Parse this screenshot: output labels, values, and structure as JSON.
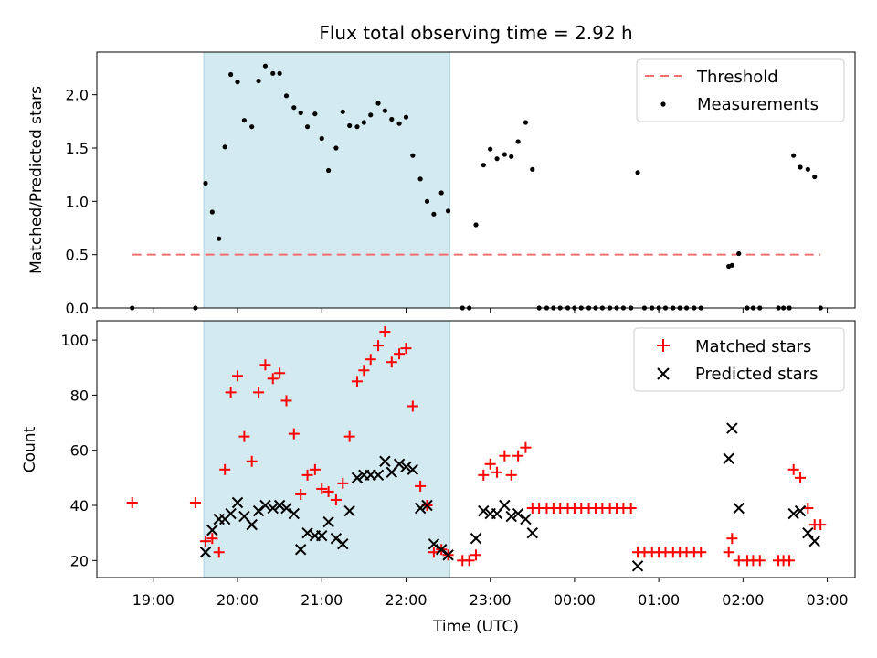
{
  "chart_data": [
    {
      "type": "scatter",
      "title": "Flux total observing time = 2.92 h",
      "xlabel": "",
      "ylabel": "Matched/Predicted stars",
      "xlim": [
        18.33,
        27.33
      ],
      "ylim": [
        0.0,
        2.4
      ],
      "yticks": [
        0.0,
        0.5,
        1.0,
        1.5,
        2.0
      ],
      "ytick_labels": [
        "0.0",
        "0.5",
        "1.0",
        "1.5",
        "2.0"
      ],
      "highlight_span": [
        19.6,
        22.52
      ],
      "threshold": {
        "label": "Threshold",
        "value": 0.5,
        "x_start": 18.75,
        "x_end": 26.92,
        "color": "#f47070"
      },
      "legend": [
        "Threshold",
        "Measurements"
      ],
      "series": [
        {
          "name": "Measurements",
          "color": "#000000",
          "points": [
            [
              18.75,
              0.0
            ],
            [
              19.5,
              0.0
            ],
            [
              19.62,
              1.17
            ],
            [
              19.7,
              0.9
            ],
            [
              19.78,
              0.65
            ],
            [
              19.85,
              1.51
            ],
            [
              19.92,
              2.19
            ],
            [
              20.0,
              2.12
            ],
            [
              20.08,
              1.76
            ],
            [
              20.17,
              1.7
            ],
            [
              20.25,
              2.13
            ],
            [
              20.33,
              2.27
            ],
            [
              20.42,
              2.2
            ],
            [
              20.5,
              2.2
            ],
            [
              20.58,
              1.99
            ],
            [
              20.67,
              1.88
            ],
            [
              20.75,
              1.83
            ],
            [
              20.83,
              1.7
            ],
            [
              20.92,
              1.82
            ],
            [
              21.0,
              1.59
            ],
            [
              21.08,
              1.29
            ],
            [
              21.17,
              1.5
            ],
            [
              21.25,
              1.84
            ],
            [
              21.33,
              1.71
            ],
            [
              21.42,
              1.7
            ],
            [
              21.5,
              1.74
            ],
            [
              21.58,
              1.81
            ],
            [
              21.67,
              1.92
            ],
            [
              21.75,
              1.85
            ],
            [
              21.83,
              1.77
            ],
            [
              21.92,
              1.73
            ],
            [
              22.0,
              1.79
            ],
            [
              22.08,
              1.43
            ],
            [
              22.17,
              1.21
            ],
            [
              22.25,
              1.0
            ],
            [
              22.33,
              0.88
            ],
            [
              22.42,
              1.08
            ],
            [
              22.5,
              0.91
            ],
            [
              22.67,
              0.0
            ],
            [
              22.75,
              0.0
            ],
            [
              22.83,
              0.78
            ],
            [
              22.92,
              1.34
            ],
            [
              23.0,
              1.49
            ],
            [
              23.08,
              1.4
            ],
            [
              23.17,
              1.44
            ],
            [
              23.25,
              1.42
            ],
            [
              23.33,
              1.56
            ],
            [
              23.42,
              1.74
            ],
            [
              23.5,
              1.3
            ],
            [
              23.58,
              0.0
            ],
            [
              23.67,
              0.0
            ],
            [
              23.75,
              0.0
            ],
            [
              23.83,
              0.0
            ],
            [
              23.92,
              0.0
            ],
            [
              24.0,
              0.0
            ],
            [
              24.08,
              0.0
            ],
            [
              24.17,
              0.0
            ],
            [
              24.25,
              0.0
            ],
            [
              24.33,
              0.0
            ],
            [
              24.42,
              0.0
            ],
            [
              24.5,
              0.0
            ],
            [
              24.58,
              0.0
            ],
            [
              24.67,
              0.0
            ],
            [
              24.75,
              1.27
            ],
            [
              24.83,
              0.0
            ],
            [
              24.92,
              0.0
            ],
            [
              25.0,
              0.0
            ],
            [
              25.08,
              0.0
            ],
            [
              25.17,
              0.0
            ],
            [
              25.25,
              0.0
            ],
            [
              25.33,
              0.0
            ],
            [
              25.42,
              0.0
            ],
            [
              25.5,
              0.0
            ],
            [
              25.83,
              0.39
            ],
            [
              25.87,
              0.4
            ],
            [
              25.95,
              0.51
            ],
            [
              26.05,
              0.0
            ],
            [
              26.12,
              0.0
            ],
            [
              26.2,
              0.0
            ],
            [
              26.42,
              0.0
            ],
            [
              26.48,
              0.0
            ],
            [
              26.55,
              0.0
            ],
            [
              26.6,
              1.43
            ],
            [
              26.68,
              1.32
            ],
            [
              26.77,
              1.3
            ],
            [
              26.85,
              1.23
            ],
            [
              26.92,
              0.0
            ]
          ]
        }
      ]
    },
    {
      "type": "scatter",
      "title": "",
      "xlabel": "Time (UTC)",
      "ylabel": "Count",
      "xlim": [
        18.33,
        27.33
      ],
      "ylim": [
        13.8,
        107.0
      ],
      "yticks": [
        20,
        40,
        60,
        80,
        100
      ],
      "ytick_labels": [
        "20",
        "40",
        "60",
        "80",
        "100"
      ],
      "xticks": [
        19,
        20,
        21,
        22,
        23,
        24,
        25,
        26,
        27
      ],
      "xtick_labels": [
        "19:00",
        "20:00",
        "21:00",
        "22:00",
        "23:00",
        "00:00",
        "01:00",
        "02:00",
        "03:00"
      ],
      "highlight_span": [
        19.6,
        22.52
      ],
      "legend": [
        "Matched stars",
        "Predicted stars"
      ],
      "series": [
        {
          "name": "Matched stars",
          "marker": "+",
          "color": "#ff0000",
          "points": [
            [
              18.75,
              41
            ],
            [
              19.5,
              41
            ],
            [
              19.62,
              27
            ],
            [
              19.7,
              28
            ],
            [
              19.78,
              23
            ],
            [
              19.85,
              53
            ],
            [
              19.92,
              81
            ],
            [
              20.0,
              87
            ],
            [
              20.08,
              65
            ],
            [
              20.17,
              56
            ],
            [
              20.25,
              81
            ],
            [
              20.33,
              91
            ],
            [
              20.42,
              86
            ],
            [
              20.5,
              88
            ],
            [
              20.58,
              78
            ],
            [
              20.67,
              66
            ],
            [
              20.75,
              44
            ],
            [
              20.83,
              51
            ],
            [
              20.92,
              53
            ],
            [
              21.0,
              46
            ],
            [
              21.08,
              45
            ],
            [
              21.17,
              42
            ],
            [
              21.25,
              48
            ],
            [
              21.33,
              65
            ],
            [
              21.42,
              85
            ],
            [
              21.5,
              89
            ],
            [
              21.58,
              93
            ],
            [
              21.67,
              98
            ],
            [
              21.75,
              103
            ],
            [
              21.83,
              92
            ],
            [
              21.92,
              95
            ],
            [
              22.0,
              97
            ],
            [
              22.08,
              76
            ],
            [
              22.17,
              47
            ],
            [
              22.25,
              40
            ],
            [
              22.33,
              23
            ],
            [
              22.42,
              24
            ],
            [
              22.5,
              22
            ],
            [
              22.67,
              20
            ],
            [
              22.75,
              20
            ],
            [
              22.83,
              22
            ],
            [
              22.92,
              51
            ],
            [
              23.0,
              55
            ],
            [
              23.08,
              52
            ],
            [
              23.17,
              58
            ],
            [
              23.25,
              51
            ],
            [
              23.33,
              58
            ],
            [
              23.42,
              61
            ],
            [
              23.5,
              39
            ],
            [
              23.58,
              39
            ],
            [
              23.67,
              39
            ],
            [
              23.75,
              39
            ],
            [
              23.83,
              39
            ],
            [
              23.92,
              39
            ],
            [
              24.0,
              39
            ],
            [
              24.08,
              39
            ],
            [
              24.17,
              39
            ],
            [
              24.25,
              39
            ],
            [
              24.33,
              39
            ],
            [
              24.42,
              39
            ],
            [
              24.5,
              39
            ],
            [
              24.58,
              39
            ],
            [
              24.67,
              39
            ],
            [
              24.75,
              23
            ],
            [
              24.83,
              23
            ],
            [
              24.92,
              23
            ],
            [
              25.0,
              23
            ],
            [
              25.08,
              23
            ],
            [
              25.17,
              23
            ],
            [
              25.25,
              23
            ],
            [
              25.33,
              23
            ],
            [
              25.42,
              23
            ],
            [
              25.5,
              23
            ],
            [
              25.83,
              23
            ],
            [
              25.87,
              28
            ],
            [
              25.95,
              20
            ],
            [
              26.05,
              20
            ],
            [
              26.12,
              20
            ],
            [
              26.2,
              20
            ],
            [
              26.42,
              20
            ],
            [
              26.48,
              20
            ],
            [
              26.55,
              20
            ],
            [
              26.6,
              53
            ],
            [
              26.68,
              50
            ],
            [
              26.77,
              39
            ],
            [
              26.85,
              33
            ],
            [
              26.92,
              33
            ]
          ]
        },
        {
          "name": "Predicted stars",
          "marker": "x",
          "color": "#000000",
          "points": [
            [
              19.62,
              23
            ],
            [
              19.7,
              31
            ],
            [
              19.78,
              35
            ],
            [
              19.85,
              35
            ],
            [
              19.92,
              37
            ],
            [
              20.0,
              41
            ],
            [
              20.08,
              36
            ],
            [
              20.17,
              33
            ],
            [
              20.25,
              38
            ],
            [
              20.33,
              40
            ],
            [
              20.42,
              39
            ],
            [
              20.5,
              40
            ],
            [
              20.58,
              39
            ],
            [
              20.67,
              37
            ],
            [
              20.75,
              24
            ],
            [
              20.83,
              30
            ],
            [
              20.92,
              29
            ],
            [
              21.0,
              29
            ],
            [
              21.08,
              34
            ],
            [
              21.17,
              28
            ],
            [
              21.25,
              26
            ],
            [
              21.33,
              38
            ],
            [
              21.42,
              50
            ],
            [
              21.5,
              51
            ],
            [
              21.58,
              51
            ],
            [
              21.67,
              51
            ],
            [
              21.75,
              56
            ],
            [
              21.83,
              52
            ],
            [
              21.92,
              55
            ],
            [
              22.0,
              54
            ],
            [
              22.08,
              53
            ],
            [
              22.17,
              39
            ],
            [
              22.25,
              40
            ],
            [
              22.33,
              26
            ],
            [
              22.42,
              24
            ],
            [
              22.5,
              22
            ],
            [
              22.83,
              28
            ],
            [
              22.92,
              38
            ],
            [
              23.0,
              37
            ],
            [
              23.08,
              37
            ],
            [
              23.17,
              40
            ],
            [
              23.25,
              36
            ],
            [
              23.33,
              37
            ],
            [
              23.42,
              35
            ],
            [
              23.5,
              30
            ],
            [
              24.75,
              18
            ],
            [
              25.83,
              57
            ],
            [
              25.87,
              68
            ],
            [
              25.95,
              39
            ],
            [
              26.6,
              37
            ],
            [
              26.68,
              38
            ],
            [
              26.77,
              30
            ],
            [
              26.85,
              27
            ]
          ]
        }
      ]
    }
  ]
}
